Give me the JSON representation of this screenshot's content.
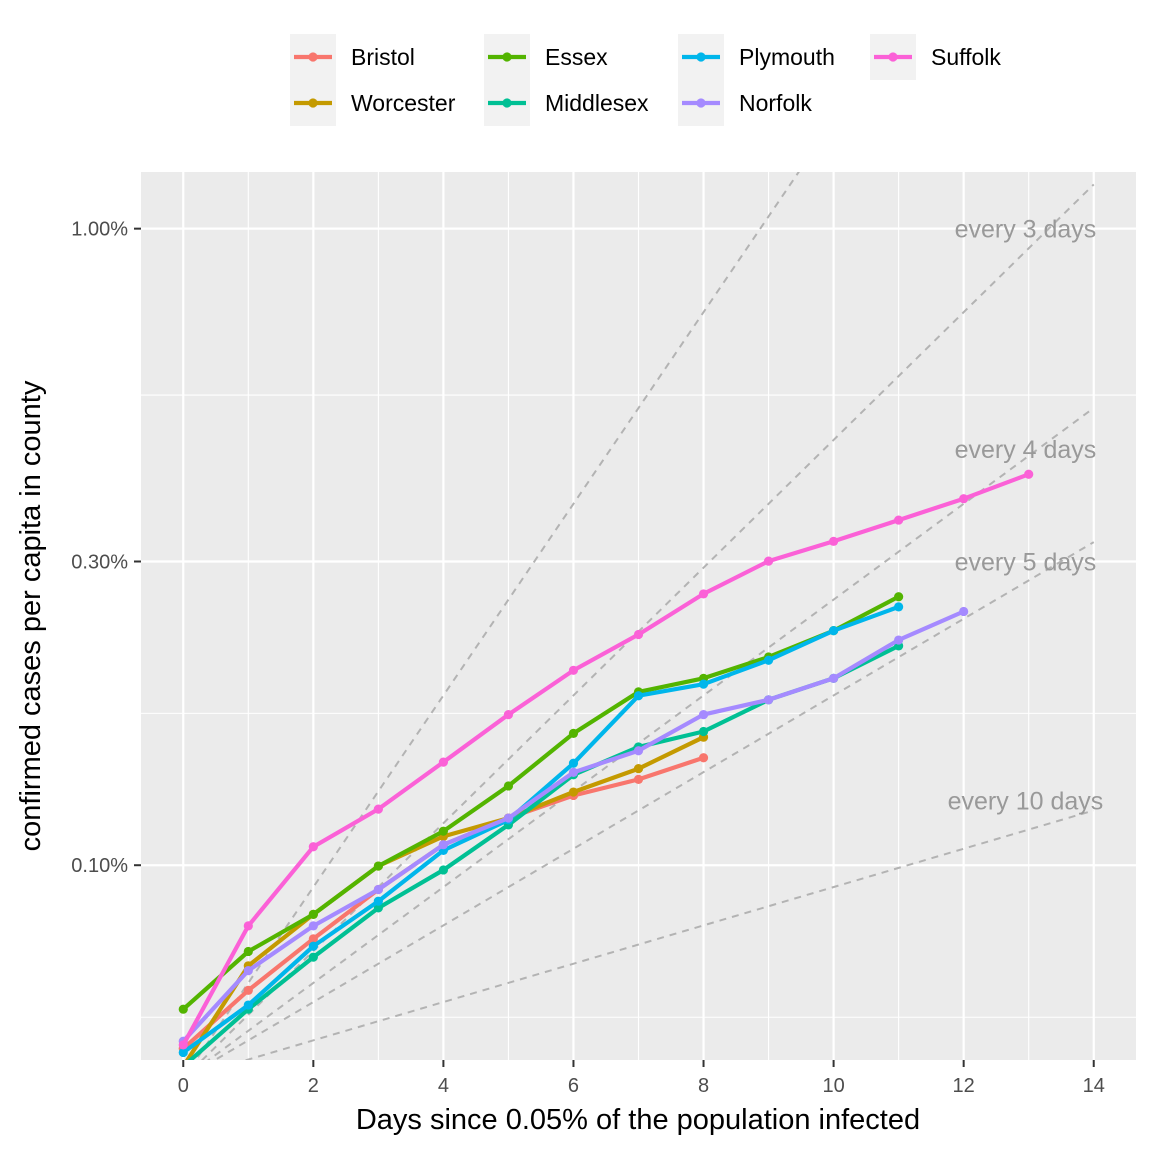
{
  "chart_data": {
    "type": "line",
    "xlabel": "Days since 0.05% of the population infected",
    "ylabel": "confirmed cases per capita in county",
    "xlim": [
      -0.65,
      14.65
    ],
    "ylim_log10": [
      -3.306,
      -1.911
    ],
    "log_y": true,
    "x_ticks": [
      {
        "value": 0,
        "label": "0"
      },
      {
        "value": 2,
        "label": "2"
      },
      {
        "value": 4,
        "label": "4"
      },
      {
        "value": 6,
        "label": "6"
      },
      {
        "value": 8,
        "label": "8"
      },
      {
        "value": 10,
        "label": "10"
      },
      {
        "value": 12,
        "label": "12"
      },
      {
        "value": 14,
        "label": "14"
      }
    ],
    "y_ticks": [
      {
        "value": 0.001,
        "label": "0.10%"
      },
      {
        "value": 0.003,
        "label": "0.30%"
      },
      {
        "value": 0.01,
        "label": "1.00%"
      }
    ],
    "y_minor_gridlines": [
      0.000577,
      0.001732,
      0.005477
    ],
    "grid": true,
    "legend_position": "top",
    "series": [
      {
        "name": "Bristol",
        "color": "#F8766D",
        "x": [
          0,
          1,
          2,
          3,
          4,
          5,
          6,
          7,
          8
        ],
        "y": [
          0.000515,
          0.000636,
          0.000766,
          0.000916,
          0.001077,
          0.001186,
          0.001287,
          0.001364,
          0.001475
        ]
      },
      {
        "name": "Worcester",
        "color": "#C49A00",
        "x": [
          0,
          1,
          2,
          3,
          4,
          5,
          6,
          7,
          8
        ],
        "y": [
          0.000483,
          0.000695,
          0.000837,
          0.000997,
          0.00111,
          0.001186,
          0.001303,
          0.001418,
          0.001589
        ]
      },
      {
        "name": "Essex",
        "color": "#53B400",
        "x": [
          0,
          1,
          2,
          3,
          4,
          5,
          6,
          7,
          8,
          9,
          10,
          11
        ],
        "y": [
          0.000594,
          0.000732,
          0.000837,
          0.000997,
          0.001131,
          0.001332,
          0.001611,
          0.001872,
          0.001966,
          0.002124,
          0.002336,
          0.002641
        ]
      },
      {
        "name": "Middlesex",
        "color": "#00C094",
        "x": [
          0,
          1,
          2,
          3,
          4,
          5,
          6,
          7,
          8,
          9,
          10,
          11
        ],
        "y": [
          0.000483,
          0.000594,
          0.000717,
          0.000857,
          0.000983,
          0.001157,
          0.001387,
          0.001534,
          0.001622,
          0.001819,
          0.001966,
          0.002211
        ]
      },
      {
        "name": "Plymouth",
        "color": "#00B6EB",
        "x": [
          0,
          1,
          2,
          3,
          4,
          5,
          6,
          7,
          8,
          9,
          10,
          11
        ],
        "y": [
          0.000508,
          0.000603,
          0.000746,
          0.000878,
          0.001055,
          0.001178,
          0.001446,
          0.001846,
          0.001925,
          0.002099,
          0.002336,
          0.002546
        ]
      },
      {
        "name": "Norfolk",
        "color": "#A58AFF",
        "x": [
          0,
          1,
          2,
          3,
          4,
          5,
          6,
          7,
          8,
          9,
          10,
          11,
          12
        ],
        "y": [
          0.000529,
          0.000683,
          0.000803,
          0.000916,
          0.001077,
          0.001186,
          0.001399,
          0.001513,
          0.001724,
          0.001819,
          0.001966,
          0.002258,
          0.002504
        ]
      },
      {
        "name": "Suffolk",
        "color": "#FB61D7",
        "x": [
          0,
          1,
          2,
          3,
          4,
          5,
          6,
          7,
          8,
          9,
          10,
          11,
          12,
          13
        ],
        "y": [
          0.000522,
          0.000803,
          0.001069,
          0.001225,
          0.001452,
          0.001724,
          0.002024,
          0.002304,
          0.002668,
          0.003004,
          0.003227,
          0.003485,
          0.003765,
          0.004113
        ]
      }
    ],
    "reference_lines": {
      "start_y": 0.000462,
      "lines": [
        {
          "label": "every 3 days",
          "doubling_days": 3
        },
        {
          "label": "every 4 days",
          "doubling_days": 4
        },
        {
          "label": "every 5 days",
          "doubling_days": 5
        },
        {
          "label": "every 10 days",
          "doubling_days": 10
        }
      ],
      "label_positions": [
        {
          "label": "every 3 days",
          "x": 12.95,
          "y": 0.01
        },
        {
          "label": "every 4 days",
          "x": 12.95,
          "y": 0.00451
        },
        {
          "label": "every 5 days",
          "x": 12.95,
          "y": 0.003
        },
        {
          "label": "every 10 days",
          "x": 12.95,
          "y": 0.001264
        }
      ],
      "extra_lines": [
        {
          "doubling_days": 2
        }
      ]
    }
  }
}
